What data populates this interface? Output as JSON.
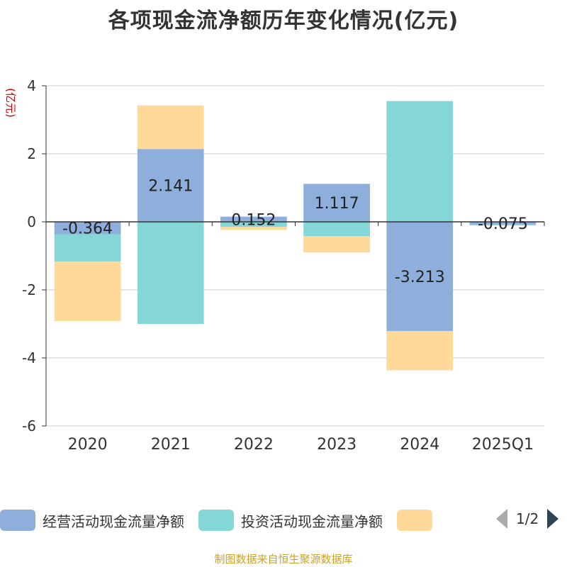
{
  "colors": {
    "operating": "#8eaedb",
    "investing": "#85d6d7",
    "financing": "#ffd99a",
    "axis": "#333333",
    "grid": "#cccccc",
    "ylabel": "#cc0000",
    "source": "#c9a227"
  },
  "chart_data": {
    "type": "bar",
    "stacked": true,
    "title": "各项现金流净额历年变化情况(亿元)",
    "ylabel": "(亿元)",
    "xlabel": "",
    "categories": [
      "2020",
      "2021",
      "2022",
      "2023",
      "2024",
      "2025Q1"
    ],
    "ylim": [
      -6,
      4
    ],
    "yticks": [
      -6,
      -4,
      -2,
      0,
      2,
      4
    ],
    "grid": true,
    "series": [
      {
        "name": "经营活动现金流量净额",
        "values": [
          -0.364,
          2.141,
          0.152,
          1.117,
          -3.213,
          -0.075
        ],
        "labels": [
          "-0.364",
          "2.141",
          "0.152",
          "1.117",
          "-3.213",
          "-0.075"
        ]
      },
      {
        "name": "投资活动现金流量净额",
        "values": [
          -0.8,
          -3.0,
          -0.15,
          -0.42,
          3.55,
          -0.03
        ]
      },
      {
        "name": "",
        "values": [
          -1.75,
          1.28,
          -0.09,
          -0.48,
          -1.15,
          0
        ]
      }
    ]
  },
  "legend": {
    "pager": "1/2"
  },
  "source_note": "制图数据来自恒生聚源数据库"
}
